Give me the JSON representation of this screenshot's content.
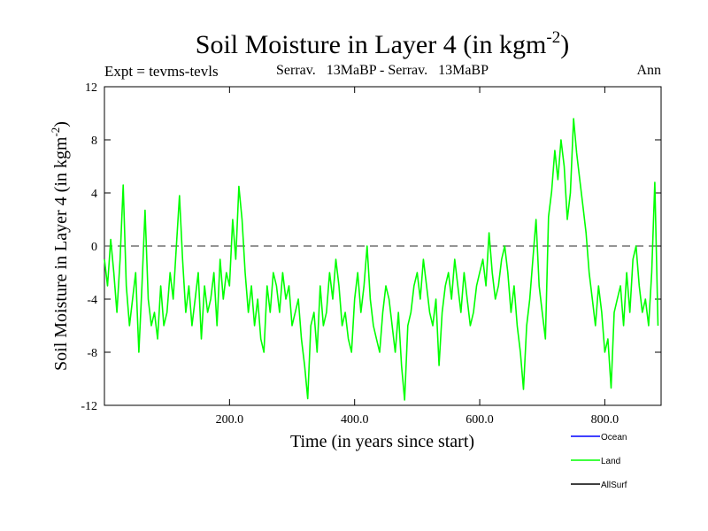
{
  "chart_data": {
    "type": "line",
    "title": "Soil Moisture in Layer 4 (in kgm",
    "title_sup": "-2",
    "title_end": ")",
    "experiment": "Expt = tevms-tevls",
    "period": "Serrav.   13MaBP - Serrav.   13MaBP",
    "season": "Ann",
    "xlabel": "Time (in years since start)",
    "ylabel": "Soil Moisture in Layer 4 (in kgm",
    "ylabel_sup": "-2",
    "ylabel_end": ")",
    "xlim": [
      0,
      890
    ],
    "ylim": [
      -12,
      12
    ],
    "xticks": [
      200,
      400,
      600,
      800
    ],
    "xtick_labels": [
      "200.0",
      "400.0",
      "600.0",
      "800.0"
    ],
    "yticks": [
      -12,
      -8,
      -4,
      0,
      4,
      8,
      12
    ],
    "ytick_labels": [
      "-12",
      "-8",
      "-4",
      "0",
      "4",
      "8",
      "12"
    ],
    "zero_line": 0,
    "legend_position": "bottom-right",
    "series": [
      {
        "name": "Ocean",
        "color": "#0000ff",
        "values": []
      },
      {
        "name": "Land",
        "color": "#00ff00",
        "x": [
          0,
          5,
          10,
          15,
          20,
          25,
          30,
          35,
          40,
          45,
          50,
          55,
          60,
          65,
          70,
          75,
          80,
          85,
          90,
          95,
          100,
          105,
          110,
          115,
          120,
          125,
          130,
          135,
          140,
          145,
          150,
          155,
          160,
          165,
          170,
          175,
          180,
          185,
          190,
          195,
          200,
          205,
          210,
          215,
          220,
          225,
          230,
          235,
          240,
          245,
          250,
          255,
          260,
          265,
          270,
          275,
          280,
          285,
          290,
          295,
          300,
          305,
          310,
          315,
          320,
          325,
          330,
          335,
          340,
          345,
          350,
          355,
          360,
          365,
          370,
          375,
          380,
          385,
          390,
          395,
          400,
          405,
          410,
          415,
          420,
          425,
          430,
          435,
          440,
          445,
          450,
          455,
          460,
          465,
          470,
          475,
          480,
          485,
          490,
          495,
          500,
          505,
          510,
          515,
          520,
          525,
          530,
          535,
          540,
          545,
          550,
          555,
          560,
          565,
          570,
          575,
          580,
          585,
          590,
          595,
          600,
          605,
          610,
          615,
          620,
          625,
          630,
          635,
          640,
          645,
          650,
          655,
          660,
          665,
          670,
          675,
          680,
          685,
          690,
          695,
          700,
          705,
          710,
          715,
          720,
          725,
          730,
          735,
          740,
          745,
          750,
          755,
          760,
          765,
          770,
          775,
          780,
          785,
          790,
          795,
          800,
          805,
          810,
          815,
          820,
          825,
          830,
          835,
          840,
          845,
          850,
          855,
          860,
          865,
          870,
          875,
          880,
          885
        ],
        "values": [
          -1,
          -3,
          0.5,
          -2,
          -5,
          -1,
          4.6,
          -3,
          -6,
          -4,
          -2,
          -8,
          -3,
          2.7,
          -4,
          -6,
          -5,
          -7,
          -3,
          -6,
          -5,
          -2,
          -4,
          0,
          3.8,
          -1,
          -5,
          -3,
          -6,
          -4,
          -2,
          -7,
          -3,
          -5,
          -4,
          -2,
          -6,
          -1,
          -4,
          -2,
          -3,
          2,
          -1,
          4.5,
          2,
          -2,
          -5,
          -3,
          -6,
          -4,
          -7,
          -8,
          -3,
          -5,
          -2,
          -3,
          -5,
          -2,
          -4,
          -3,
          -6,
          -5,
          -4,
          -7,
          -9,
          -11.5,
          -6,
          -5,
          -8,
          -3,
          -6,
          -5,
          -2,
          -4,
          -1,
          -3,
          -6,
          -5,
          -7,
          -8,
          -4,
          -2,
          -5,
          -3,
          0,
          -4,
          -6,
          -7,
          -8,
          -5,
          -3,
          -4,
          -6,
          -8,
          -5,
          -9,
          -11.6,
          -6,
          -5,
          -3,
          -2,
          -4,
          -1,
          -3,
          -5,
          -6,
          -4,
          -9,
          -5,
          -3,
          -2,
          -4,
          -1,
          -3,
          -5,
          -2,
          -4,
          -6,
          -5,
          -3,
          -2,
          -1,
          -3,
          1,
          -2,
          -4,
          -3,
          -1,
          0,
          -2,
          -5,
          -3,
          -6,
          -8,
          -10.8,
          -6,
          -4,
          -1,
          2,
          -3,
          -5,
          -7,
          2.2,
          4.1,
          7.2,
          5,
          8,
          6,
          2,
          4,
          9.6,
          7,
          5,
          3,
          1,
          -2,
          -4,
          -6,
          -3,
          -5,
          -8,
          -7,
          -10.7,
          -5,
          -4,
          -3,
          -6,
          -2,
          -5,
          -1,
          0,
          -3,
          -5,
          -4,
          -6,
          -2,
          4.8,
          -6
        ]
      },
      {
        "name": "AllSurf",
        "color": "#000000",
        "values": []
      }
    ]
  }
}
